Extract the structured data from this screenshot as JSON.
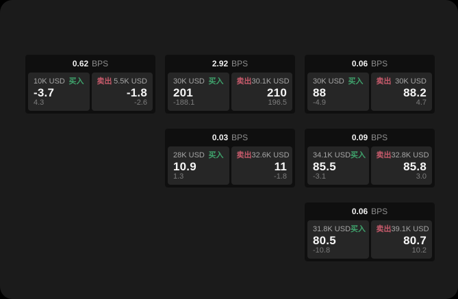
{
  "colors": {
    "page_bg": "#1b1b1b",
    "card_bg": "#0f0f0f",
    "panel_bg": "#262626",
    "buy": "#3fa36c",
    "sell": "#c75a6b",
    "value": "#f5f5f5",
    "label": "#a6a6a6",
    "sub": "#7d7d7d",
    "bps_unit": "#8f8f8f"
  },
  "labels": {
    "bps": "BPS",
    "buy": "买入",
    "sell": "卖出"
  },
  "cards": [
    {
      "bps": "0.62",
      "row": 1,
      "col": 1,
      "buy": {
        "amount": "10K USD",
        "value": "-3.7",
        "sub": "4.3"
      },
      "sell": {
        "amount": "5.5K USD",
        "value": "-1.8",
        "sub": "-2.6"
      }
    },
    {
      "bps": "2.92",
      "row": 1,
      "col": 2,
      "buy": {
        "amount": "30K USD",
        "value": "201",
        "sub": "-188.1"
      },
      "sell": {
        "amount": "30.1K USD",
        "value": "210",
        "sub": "196.5"
      }
    },
    {
      "bps": "0.06",
      "row": 1,
      "col": 3,
      "buy": {
        "amount": "30K USD",
        "value": "88",
        "sub": "-4.9"
      },
      "sell": {
        "amount": "30K USD",
        "value": "88.2",
        "sub": "4.7"
      }
    },
    {
      "bps": "0.03",
      "row": 2,
      "col": 2,
      "buy": {
        "amount": "28K USD",
        "value": "10.9",
        "sub": "1.3"
      },
      "sell": {
        "amount": "32.6K USD",
        "value": "11",
        "sub": "-1.8"
      }
    },
    {
      "bps": "0.09",
      "row": 2,
      "col": 3,
      "buy": {
        "amount": "34.1K USD",
        "value": "85.5",
        "sub": "-3.1"
      },
      "sell": {
        "amount": "32.8K USD",
        "value": "85.8",
        "sub": "3.0"
      }
    },
    {
      "bps": "0.06",
      "row": 3,
      "col": 3,
      "buy": {
        "amount": "31.8K USD",
        "value": "80.5",
        "sub": "-10.8"
      },
      "sell": {
        "amount": "39.1K USD",
        "value": "80.7",
        "sub": "10.2"
      }
    }
  ]
}
